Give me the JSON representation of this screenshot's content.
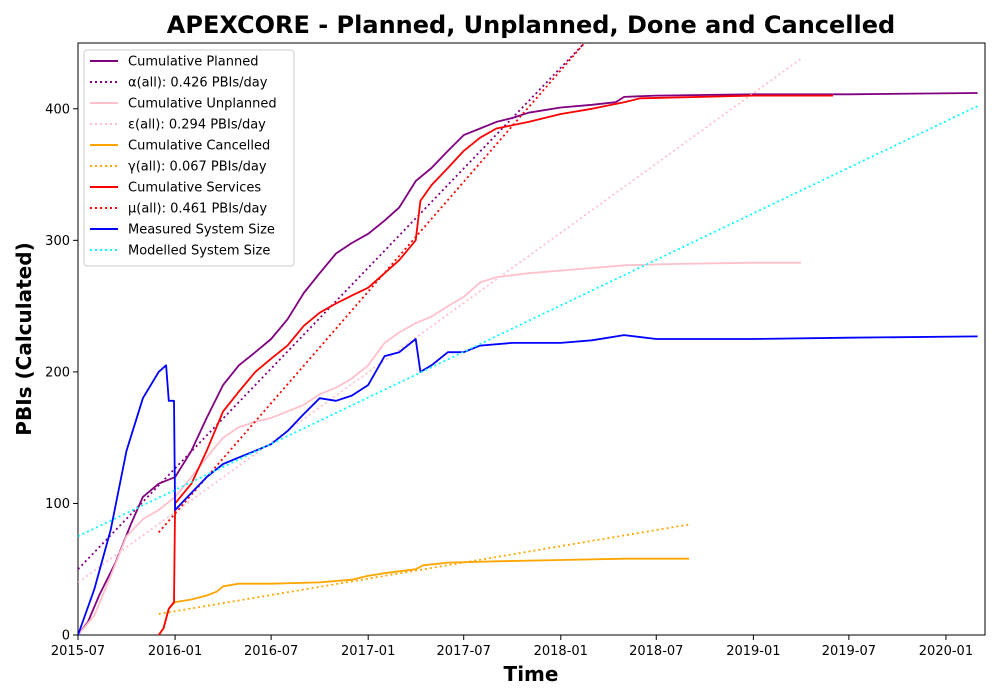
{
  "chart_data": {
    "type": "line",
    "title": "APEXCORE - Planned, Unplanned, Done  and Cancelled",
    "xlabel": "Time",
    "ylabel": "PBIs (Calculated)",
    "xlim": [
      "2015-07-01",
      "2020-03-15"
    ],
    "ylim": [
      0,
      450
    ],
    "x_ticks": [
      "2015-07",
      "2016-01",
      "2016-07",
      "2017-01",
      "2017-07",
      "2018-01",
      "2018-07",
      "2019-01",
      "2019-07",
      "2020-01"
    ],
    "y_ticks": [
      0,
      100,
      200,
      300,
      400
    ],
    "grid": false,
    "legend_position": "top-left",
    "series": [
      {
        "name": "Cumulative Planned",
        "color": "#800080",
        "style": "solid",
        "points": [
          [
            "2015-07-01",
            0
          ],
          [
            "2015-07-20",
            10
          ],
          [
            "2015-08-10",
            30
          ],
          [
            "2015-09-10",
            55
          ],
          [
            "2015-10-10",
            85
          ],
          [
            "2015-11-01",
            105
          ],
          [
            "2015-12-01",
            115
          ],
          [
            "2016-01-01",
            120
          ],
          [
            "2016-02-01",
            140
          ],
          [
            "2016-03-01",
            165
          ],
          [
            "2016-04-01",
            190
          ],
          [
            "2016-05-01",
            205
          ],
          [
            "2016-06-01",
            215
          ],
          [
            "2016-07-01",
            225
          ],
          [
            "2016-08-01",
            240
          ],
          [
            "2016-09-01",
            260
          ],
          [
            "2016-10-01",
            275
          ],
          [
            "2016-11-01",
            290
          ],
          [
            "2016-12-01",
            298
          ],
          [
            "2017-01-01",
            305
          ],
          [
            "2017-02-01",
            315
          ],
          [
            "2017-03-01",
            325
          ],
          [
            "2017-04-01",
            345
          ],
          [
            "2017-05-01",
            355
          ],
          [
            "2017-06-01",
            368
          ],
          [
            "2017-07-01",
            380
          ],
          [
            "2017-08-01",
            385
          ],
          [
            "2017-09-01",
            390
          ],
          [
            "2017-10-01",
            393
          ],
          [
            "2017-11-01",
            397
          ],
          [
            "2018-01-01",
            401
          ],
          [
            "2018-03-01",
            403
          ],
          [
            "2018-04-15",
            405
          ],
          [
            "2018-05-01",
            409
          ],
          [
            "2018-07-01",
            410
          ],
          [
            "2019-01-01",
            411
          ],
          [
            "2019-07-01",
            411
          ],
          [
            "2020-03-01",
            412
          ]
        ]
      },
      {
        "name": "α(all): 0.426 PBIs/day",
        "color": "#800080",
        "style": "dotted",
        "points": [
          [
            "2015-07-01",
            50
          ],
          [
            "2018-02-15",
            450
          ]
        ]
      },
      {
        "name": "Cumulative Unplanned",
        "color": "#ffc0cb",
        "style": "solid",
        "points": [
          [
            "2015-07-01",
            0
          ],
          [
            "2015-08-01",
            15
          ],
          [
            "2015-09-01",
            45
          ],
          [
            "2015-10-01",
            75
          ],
          [
            "2015-11-01",
            88
          ],
          [
            "2015-12-01",
            95
          ],
          [
            "2016-01-01",
            105
          ],
          [
            "2016-02-01",
            120
          ],
          [
            "2016-03-01",
            135
          ],
          [
            "2016-04-01",
            150
          ],
          [
            "2016-05-01",
            158
          ],
          [
            "2016-06-01",
            162
          ],
          [
            "2016-07-01",
            165
          ],
          [
            "2016-08-01",
            170
          ],
          [
            "2016-09-01",
            175
          ],
          [
            "2016-10-01",
            183
          ],
          [
            "2016-11-01",
            188
          ],
          [
            "2016-12-01",
            195
          ],
          [
            "2017-01-01",
            205
          ],
          [
            "2017-02-01",
            222
          ],
          [
            "2017-03-01",
            230
          ],
          [
            "2017-04-01",
            237
          ],
          [
            "2017-05-01",
            242
          ],
          [
            "2017-06-01",
            250
          ],
          [
            "2017-07-01",
            257
          ],
          [
            "2017-08-01",
            268
          ],
          [
            "2017-09-01",
            272
          ],
          [
            "2017-11-01",
            275
          ],
          [
            "2018-01-01",
            277
          ],
          [
            "2018-03-01",
            279
          ],
          [
            "2018-05-01",
            281
          ],
          [
            "2018-08-01",
            282
          ],
          [
            "2019-01-01",
            283
          ],
          [
            "2019-04-01",
            283
          ]
        ]
      },
      {
        "name": "ε(all): 0.294 PBIs/day",
        "color": "#ffc0cb",
        "style": "dotted",
        "points": [
          [
            "2015-07-01",
            40
          ],
          [
            "2019-04-01",
            438
          ]
        ]
      },
      {
        "name": "Cumulative Cancelled",
        "color": "#ffa500",
        "style": "solid",
        "points": [
          [
            "2015-12-01",
            0
          ],
          [
            "2015-12-10",
            5
          ],
          [
            "2015-12-20",
            20
          ],
          [
            "2016-01-01",
            25
          ],
          [
            "2016-02-01",
            27
          ],
          [
            "2016-03-01",
            30
          ],
          [
            "2016-03-20",
            33
          ],
          [
            "2016-04-01",
            37
          ],
          [
            "2016-05-01",
            39
          ],
          [
            "2016-07-01",
            39
          ],
          [
            "2016-10-01",
            40
          ],
          [
            "2016-12-01",
            42
          ],
          [
            "2017-01-01",
            45
          ],
          [
            "2017-02-01",
            47
          ],
          [
            "2017-04-01",
            50
          ],
          [
            "2017-04-15",
            53
          ],
          [
            "2017-06-01",
            55
          ],
          [
            "2017-09-01",
            56
          ],
          [
            "2018-01-01",
            57
          ],
          [
            "2018-05-01",
            58
          ],
          [
            "2018-09-01",
            58
          ]
        ]
      },
      {
        "name": "γ(all): 0.067 PBIs/day",
        "color": "#ffa500",
        "style": "dotted",
        "points": [
          [
            "2015-12-01",
            16
          ],
          [
            "2018-09-01",
            84
          ]
        ]
      },
      {
        "name": "Cumulative Services",
        "color": "#ff0000",
        "style": "solid",
        "points": [
          [
            "2015-12-01",
            0
          ],
          [
            "2015-12-10",
            5
          ],
          [
            "2015-12-20",
            20
          ],
          [
            "2015-12-30",
            25
          ],
          [
            "2016-01-01",
            100
          ],
          [
            "2016-02-01",
            115
          ],
          [
            "2016-03-01",
            140
          ],
          [
            "2016-04-01",
            170
          ],
          [
            "2016-05-01",
            185
          ],
          [
            "2016-06-01",
            200
          ],
          [
            "2016-07-01",
            210
          ],
          [
            "2016-08-01",
            220
          ],
          [
            "2016-09-01",
            235
          ],
          [
            "2016-10-01",
            245
          ],
          [
            "2016-11-01",
            252
          ],
          [
            "2016-12-01",
            258
          ],
          [
            "2017-01-01",
            264
          ],
          [
            "2017-02-01",
            275
          ],
          [
            "2017-03-01",
            285
          ],
          [
            "2017-04-01",
            300
          ],
          [
            "2017-04-10",
            330
          ],
          [
            "2017-05-01",
            342
          ],
          [
            "2017-06-01",
            355
          ],
          [
            "2017-07-01",
            368
          ],
          [
            "2017-08-01",
            378
          ],
          [
            "2017-09-01",
            385
          ],
          [
            "2017-11-01",
            390
          ],
          [
            "2018-01-01",
            396
          ],
          [
            "2018-03-01",
            400
          ],
          [
            "2018-05-01",
            405
          ],
          [
            "2018-06-01",
            408
          ],
          [
            "2019-01-01",
            410
          ],
          [
            "2019-06-01",
            410
          ]
        ]
      },
      {
        "name": "μ(all): 0.461 PBIs/day",
        "color": "#ff0000",
        "style": "dotted",
        "points": [
          [
            "2015-12-01",
            78
          ],
          [
            "2018-02-15",
            450
          ]
        ]
      },
      {
        "name": "Measured System Size",
        "color": "#0000ff",
        "style": "solid",
        "points": [
          [
            "2015-07-01",
            0
          ],
          [
            "2015-08-01",
            35
          ],
          [
            "2015-09-01",
            80
          ],
          [
            "2015-10-01",
            140
          ],
          [
            "2015-11-01",
            180
          ],
          [
            "2015-12-01",
            200
          ],
          [
            "2015-12-15",
            205
          ],
          [
            "2015-12-20",
            178
          ],
          [
            "2015-12-30",
            178
          ],
          [
            "2016-01-01",
            95
          ],
          [
            "2016-02-01",
            108
          ],
          [
            "2016-03-01",
            120
          ],
          [
            "2016-04-01",
            130
          ],
          [
            "2016-05-01",
            135
          ],
          [
            "2016-06-01",
            140
          ],
          [
            "2016-07-01",
            145
          ],
          [
            "2016-08-01",
            155
          ],
          [
            "2016-09-01",
            168
          ],
          [
            "2016-10-01",
            180
          ],
          [
            "2016-11-01",
            178
          ],
          [
            "2016-12-01",
            182
          ],
          [
            "2017-01-01",
            190
          ],
          [
            "2017-02-01",
            212
          ],
          [
            "2017-03-01",
            215
          ],
          [
            "2017-04-01",
            225
          ],
          [
            "2017-04-10",
            200
          ],
          [
            "2017-05-01",
            205
          ],
          [
            "2017-06-01",
            215
          ],
          [
            "2017-07-01",
            215
          ],
          [
            "2017-08-01",
            220
          ],
          [
            "2017-10-01",
            222
          ],
          [
            "2018-01-01",
            222
          ],
          [
            "2018-03-01",
            224
          ],
          [
            "2018-05-01",
            228
          ],
          [
            "2018-07-01",
            225
          ],
          [
            "2019-01-01",
            225
          ],
          [
            "2019-07-01",
            226
          ],
          [
            "2020-03-01",
            227
          ]
        ]
      },
      {
        "name": "Modelled System Size",
        "color": "#00ffff",
        "style": "dotted",
        "points": [
          [
            "2015-07-01",
            75
          ],
          [
            "2020-03-01",
            402
          ]
        ]
      }
    ]
  }
}
